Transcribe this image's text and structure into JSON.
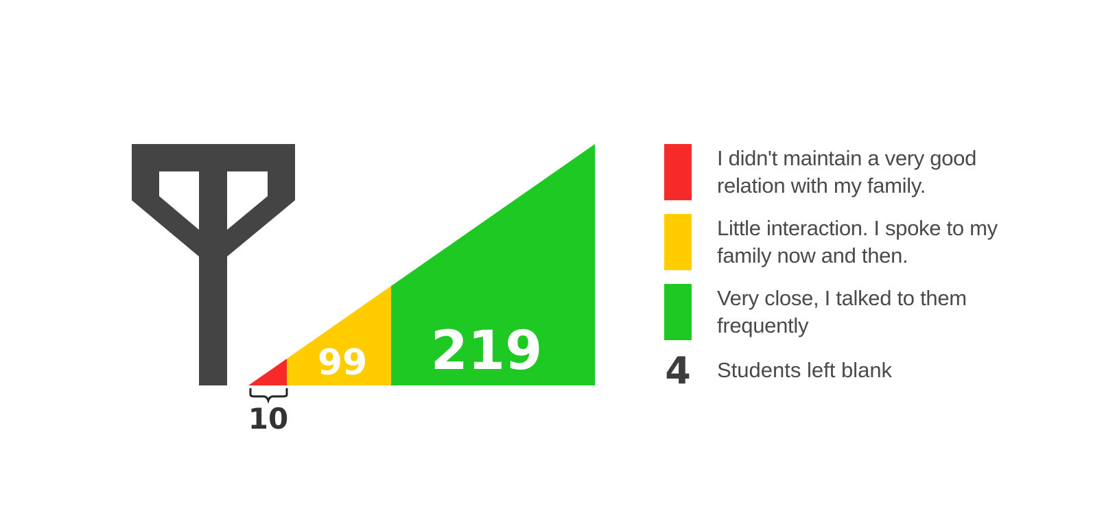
{
  "chart_data": {
    "type": "area",
    "title": "",
    "series": [
      {
        "label": "10",
        "value": 10,
        "color": "#f72a2a"
      },
      {
        "label": "99",
        "value": 99,
        "color": "#ffcc00"
      },
      {
        "label": "219",
        "value": 219,
        "color": "#1fc924"
      }
    ],
    "blank": {
      "value": "4",
      "text": "Students left blank"
    }
  },
  "legend": [
    {
      "text": "I didn't maintain a very good relation with my family.",
      "color": "#f72a2a"
    },
    {
      "text": "Little interaction. I spoke to my family now and then.",
      "color": "#ffcc00"
    },
    {
      "text": "Very close, I talked to them frequently",
      "color": "#1fc924"
    }
  ],
  "icon": {
    "name": "family-tree-icon",
    "color": "#444444"
  }
}
